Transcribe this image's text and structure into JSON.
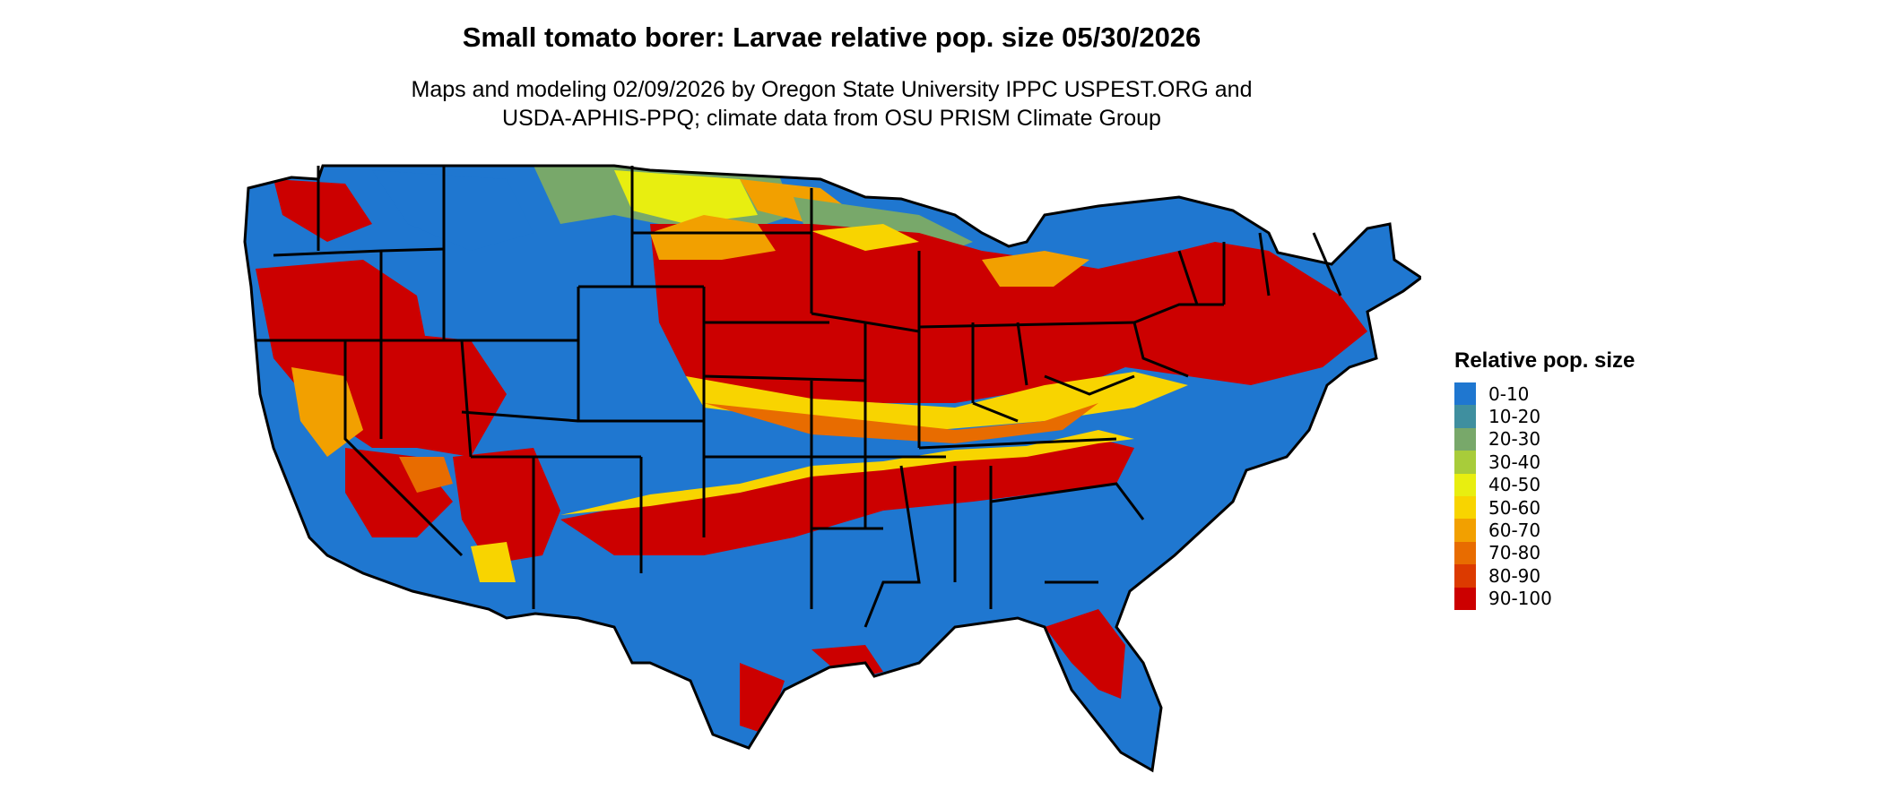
{
  "map": {
    "title": "Small tomato borer: Larvae relative pop. size 05/30/2026",
    "subtitle_lines": [
      "Maps and modeling 02/09/2026 by Oregon State University IPPC USPEST.ORG and",
      "USDA-APHIS-PPQ; climate data from OSU PRISM Climate Group"
    ],
    "region": "contiguous United States with state boundaries"
  },
  "legend": {
    "title": "Relative pop. size",
    "items": [
      {
        "label": "0-10",
        "color": "#1f77d0"
      },
      {
        "label": "10-20",
        "color": "#3f8f9f"
      },
      {
        "label": "20-30",
        "color": "#78a86a"
      },
      {
        "label": "30-40",
        "color": "#a8cc3a"
      },
      {
        "label": "40-50",
        "color": "#e8ee10"
      },
      {
        "label": "50-60",
        "color": "#f8d400"
      },
      {
        "label": "60-70",
        "color": "#f2a000"
      },
      {
        "label": "70-80",
        "color": "#e86c00"
      },
      {
        "label": "80-90",
        "color": "#dc3a00"
      },
      {
        "label": "90-100",
        "color": "#cc0000"
      }
    ]
  }
}
